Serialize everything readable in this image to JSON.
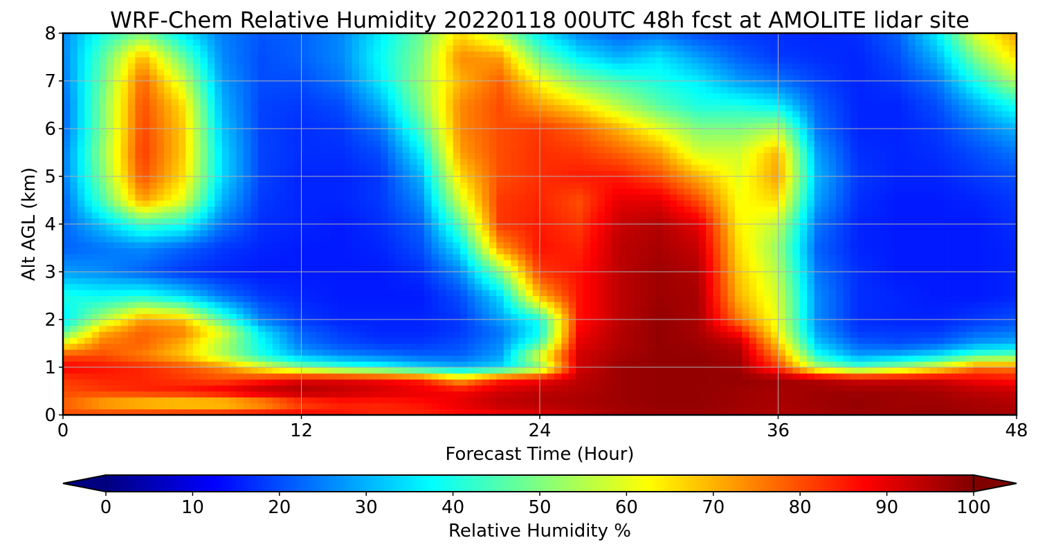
{
  "chart_data": {
    "type": "heatmap",
    "title": "WRF-Chem Relative Humidity 20220118 00UTC 48h fcst at AMOLITE lidar site",
    "xlabel": "Forecast Time (Hour)",
    "ylabel": "Alt AGL (km)",
    "xlim": [
      0,
      48
    ],
    "ylim": [
      0,
      8
    ],
    "xticks": [
      0,
      12,
      24,
      36,
      48
    ],
    "yticks": [
      0,
      1,
      2,
      3,
      4,
      5,
      6,
      7,
      8
    ],
    "grid": true,
    "colormap": "jet",
    "colorbar": {
      "label": "Relative Humidity %",
      "range": [
        0,
        100
      ],
      "ticks": [
        0,
        10,
        20,
        30,
        40,
        50,
        60,
        70,
        80,
        90,
        100
      ],
      "extend": "both",
      "orientation": "horizontal",
      "location": "bottom"
    },
    "z_units": "%",
    "x": [
      0,
      2,
      4,
      6,
      8,
      10,
      12,
      14,
      16,
      18,
      20,
      22,
      24,
      26,
      28,
      30,
      32,
      34,
      36,
      38,
      40,
      42,
      44,
      46,
      48
    ],
    "y": [
      0,
      0.25,
      0.5,
      0.75,
      1,
      1.25,
      1.5,
      1.75,
      2,
      2.5,
      3,
      3.5,
      4,
      4.5,
      5,
      5.5,
      6,
      6.5,
      7,
      7.5,
      8
    ],
    "z": [
      [
        80,
        82,
        84,
        86,
        87,
        88,
        88,
        86,
        84,
        84,
        86,
        88,
        90,
        93,
        96,
        97,
        97,
        96,
        95,
        96,
        97,
        97,
        98,
        97,
        96
      ],
      [
        78,
        70,
        66,
        64,
        64,
        70,
        80,
        84,
        84,
        86,
        90,
        94,
        95,
        96,
        97,
        98,
        98,
        97,
        96,
        97,
        98,
        97,
        97,
        96,
        95
      ],
      [
        80,
        82,
        84,
        86,
        90,
        95,
        96,
        94,
        92,
        90,
        88,
        92,
        94,
        95,
        97,
        98,
        98,
        97,
        96,
        97,
        97,
        97,
        96,
        94,
        93
      ],
      [
        82,
        84,
        84,
        82,
        80,
        84,
        90,
        90,
        88,
        84,
        70,
        84,
        88,
        94,
        97,
        98,
        98,
        98,
        97,
        95,
        92,
        92,
        92,
        88,
        86
      ],
      [
        88,
        86,
        84,
        80,
        74,
        62,
        50,
        44,
        40,
        34,
        30,
        34,
        50,
        92,
        97,
        98,
        98,
        97,
        82,
        55,
        45,
        52,
        62,
        76,
        75
      ],
      [
        80,
        80,
        75,
        68,
        55,
        40,
        30,
        26,
        24,
        22,
        22,
        28,
        60,
        92,
        96,
        98,
        98,
        96,
        75,
        40,
        28,
        30,
        35,
        45,
        48
      ],
      [
        62,
        76,
        78,
        70,
        55,
        38,
        24,
        20,
        18,
        18,
        20,
        26,
        45,
        90,
        95,
        98,
        97,
        94,
        68,
        32,
        22,
        20,
        22,
        28,
        30
      ],
      [
        45,
        70,
        78,
        75,
        60,
        35,
        22,
        18,
        16,
        16,
        18,
        24,
        38,
        88,
        95,
        98,
        96,
        86,
        62,
        28,
        18,
        18,
        18,
        22,
        24
      ],
      [
        35,
        55,
        72,
        68,
        45,
        25,
        18,
        16,
        16,
        16,
        18,
        28,
        40,
        86,
        94,
        98,
        96,
        76,
        60,
        26,
        17,
        16,
        16,
        18,
        20
      ],
      [
        40,
        38,
        40,
        34,
        24,
        18,
        16,
        15,
        15,
        15,
        20,
        34,
        70,
        86,
        94,
        97,
        96,
        70,
        58,
        26,
        17,
        16,
        15,
        15,
        16
      ],
      [
        28,
        26,
        22,
        18,
        16,
        15,
        15,
        15,
        15,
        17,
        26,
        50,
        82,
        86,
        94,
        97,
        95,
        68,
        55,
        24,
        17,
        15,
        15,
        15,
        16
      ],
      [
        22,
        24,
        26,
        22,
        18,
        16,
        15,
        15,
        16,
        20,
        35,
        72,
        86,
        84,
        94,
        96,
        93,
        66,
        52,
        22,
        16,
        15,
        15,
        15,
        16
      ],
      [
        22,
        32,
        44,
        40,
        24,
        17,
        16,
        15,
        17,
        22,
        46,
        82,
        85,
        82,
        93,
        95,
        90,
        64,
        56,
        24,
        16,
        15,
        15,
        15,
        17
      ],
      [
        22,
        45,
        72,
        60,
        30,
        18,
        16,
        16,
        18,
        26,
        58,
        82,
        84,
        80,
        90,
        90,
        80,
        62,
        66,
        28,
        17,
        15,
        15,
        16,
        18
      ],
      [
        24,
        50,
        80,
        66,
        34,
        19,
        16,
        16,
        18,
        30,
        66,
        80,
        83,
        85,
        85,
        80,
        70,
        60,
        72,
        30,
        18,
        16,
        16,
        18,
        20
      ],
      [
        24,
        52,
        82,
        68,
        34,
        19,
        17,
        17,
        20,
        36,
        72,
        80,
        83,
        82,
        78,
        72,
        58,
        58,
        70,
        28,
        17,
        16,
        17,
        20,
        24
      ],
      [
        22,
        50,
        81,
        68,
        32,
        19,
        17,
        18,
        24,
        44,
        74,
        80,
        82,
        78,
        70,
        60,
        50,
        50,
        55,
        24,
        16,
        16,
        18,
        24,
        30
      ],
      [
        22,
        50,
        80,
        66,
        30,
        19,
        18,
        20,
        30,
        50,
        74,
        80,
        72,
        65,
        55,
        46,
        40,
        40,
        36,
        22,
        16,
        16,
        20,
        30,
        40
      ],
      [
        24,
        48,
        78,
        58,
        28,
        20,
        20,
        24,
        36,
        52,
        70,
        78,
        62,
        50,
        44,
        40,
        36,
        28,
        24,
        19,
        16,
        18,
        24,
        40,
        55
      ],
      [
        25,
        46,
        70,
        48,
        26,
        20,
        22,
        26,
        38,
        50,
        74,
        72,
        48,
        36,
        30,
        35,
        28,
        22,
        18,
        17,
        16,
        20,
        30,
        50,
        66
      ],
      [
        26,
        40,
        50,
        36,
        25,
        21,
        22,
        26,
        36,
        48,
        66,
        55,
        36,
        26,
        22,
        24,
        20,
        18,
        17,
        16,
        17,
        22,
        36,
        60,
        72
      ]
    ]
  }
}
